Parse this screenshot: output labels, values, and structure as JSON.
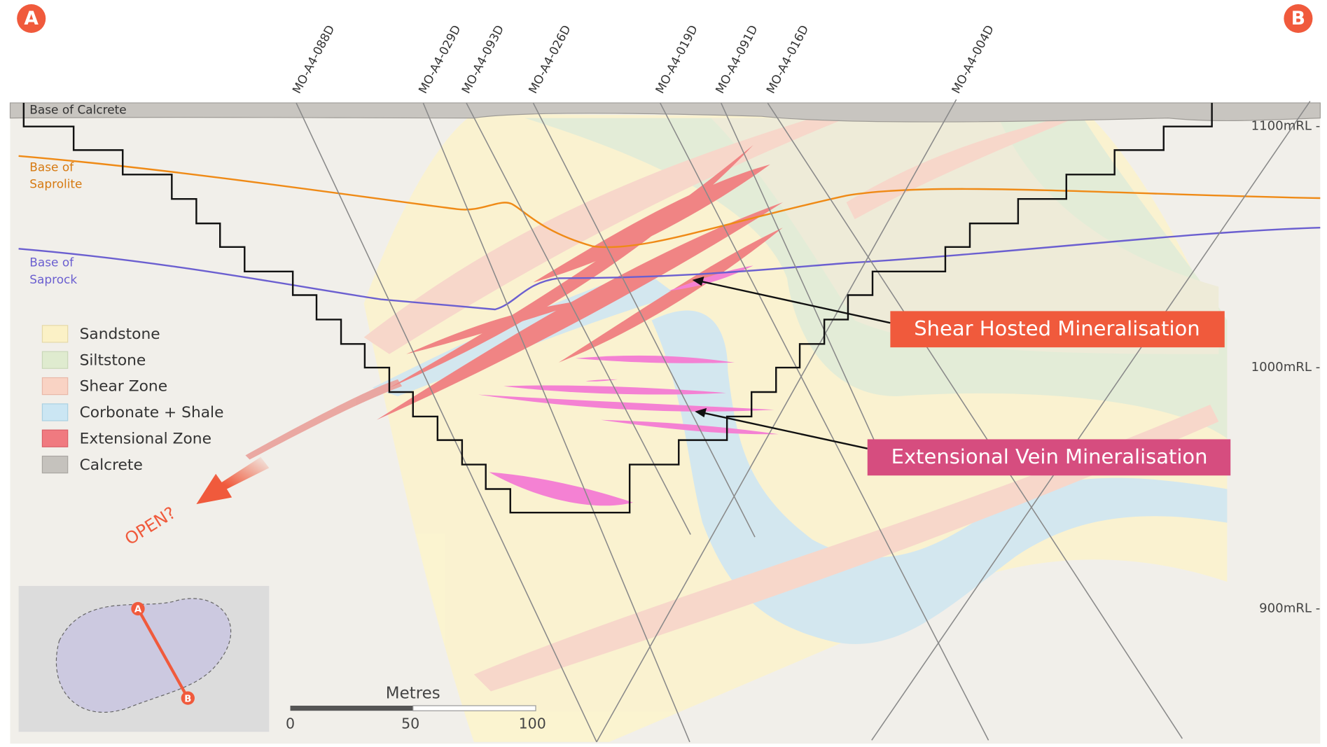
{
  "markers": {
    "a": "A",
    "b": "B"
  },
  "drill_holes": [
    "MO-A4-088D",
    "MO-A4-029D",
    "MO-A4-093D",
    "MO-A4-026D",
    "MO-A4-019D",
    "MO-A4-091D",
    "MO-A4-016D",
    "MO-A4-004D"
  ],
  "surfaces": {
    "calcrete": "Base of Calcrete",
    "saprolite": [
      "Base of",
      "Saprolite"
    ],
    "saprock": [
      "Base of",
      "Saprock"
    ]
  },
  "rl_labels": [
    "1100mRL -",
    "1000mRL -",
    "900mRL -"
  ],
  "legend": [
    "Sandstone",
    "Siltstone",
    "Shear Zone",
    "Corbonate + Shale",
    "Extensional Zone",
    "Calcrete"
  ],
  "callouts": {
    "shear": "Shear Hosted Mineralisation",
    "extensional": "Extensional Vein Mineralisation"
  },
  "open_label": "OPEN?",
  "scale_bar": {
    "title": "Metres",
    "labels": [
      "0",
      "50",
      "100"
    ]
  },
  "inset": {
    "a": "A",
    "b": "B"
  }
}
